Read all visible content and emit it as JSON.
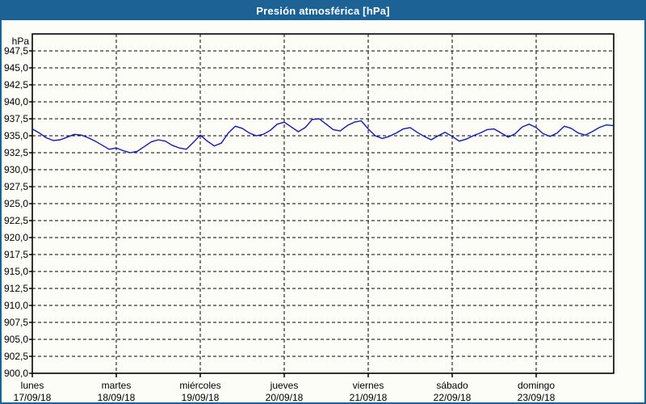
{
  "window": {
    "title": "Presión atmosférica [hPa]"
  },
  "colors": {
    "titlebar": "#1d6295",
    "frame": "#1d6295",
    "background": "#fcfdf6",
    "line": "#1717ab",
    "grid": "#000000",
    "text": "#000000",
    "title_text": "#ffffff"
  },
  "chart_data": {
    "type": "line",
    "title": "Presión atmosférica [hPa]",
    "ylabel": "hPa",
    "ylim": [
      900,
      950
    ],
    "ytick_step": 2.5,
    "ytick_labels": [
      "947,5",
      "945,0",
      "942,5",
      "940,0",
      "937,5",
      "935,0",
      "932,5",
      "930,0",
      "927,5",
      "925,0",
      "922,5",
      "920,0",
      "917,5",
      "915,0",
      "912,5",
      "910,0",
      "907,5",
      "905,0",
      "902,5",
      "900,0"
    ],
    "grid": "dashed",
    "legend": "none",
    "days": [
      {
        "name": "lunes",
        "date": "17/09/18"
      },
      {
        "name": "martes",
        "date": "18/09/18"
      },
      {
        "name": "miércoles",
        "date": "19/09/18"
      },
      {
        "name": "jueves",
        "date": "20/09/18"
      },
      {
        "name": "viernes",
        "date": "21/09/18"
      },
      {
        "name": "sábado",
        "date": "22/09/18"
      },
      {
        "name": "domingo",
        "date": "23/09/18"
      }
    ],
    "series": [
      {
        "name": "Presión atmosférica",
        "hours_start": 0,
        "hours_step": 2,
        "values": [
          936.0,
          935.4,
          934.7,
          934.3,
          934.4,
          934.8,
          935.2,
          935.1,
          934.7,
          934.2,
          933.6,
          933.0,
          933.2,
          932.8,
          932.5,
          932.7,
          933.4,
          934.1,
          934.4,
          934.2,
          933.6,
          933.2,
          933.0,
          934.0,
          935.1,
          934.2,
          933.5,
          933.9,
          935.4,
          936.4,
          936.1,
          935.4,
          935.0,
          935.2,
          935.8,
          936.7,
          937.0,
          936.3,
          935.6,
          936.2,
          937.4,
          937.5,
          936.7,
          935.9,
          935.7,
          936.5,
          937.0,
          937.2,
          936.0,
          935.0,
          934.6,
          934.9,
          935.4,
          936.0,
          936.2,
          935.5,
          934.9,
          934.4,
          935.0,
          935.5,
          934.9,
          934.2,
          934.5,
          935.0,
          935.4,
          935.9,
          936.0,
          935.4,
          934.8,
          935.3,
          936.3,
          936.7,
          936.2,
          935.3,
          934.9,
          935.4,
          936.4,
          936.1,
          935.4,
          935.1,
          935.6,
          936.2,
          936.6,
          936.5
        ]
      }
    ]
  }
}
